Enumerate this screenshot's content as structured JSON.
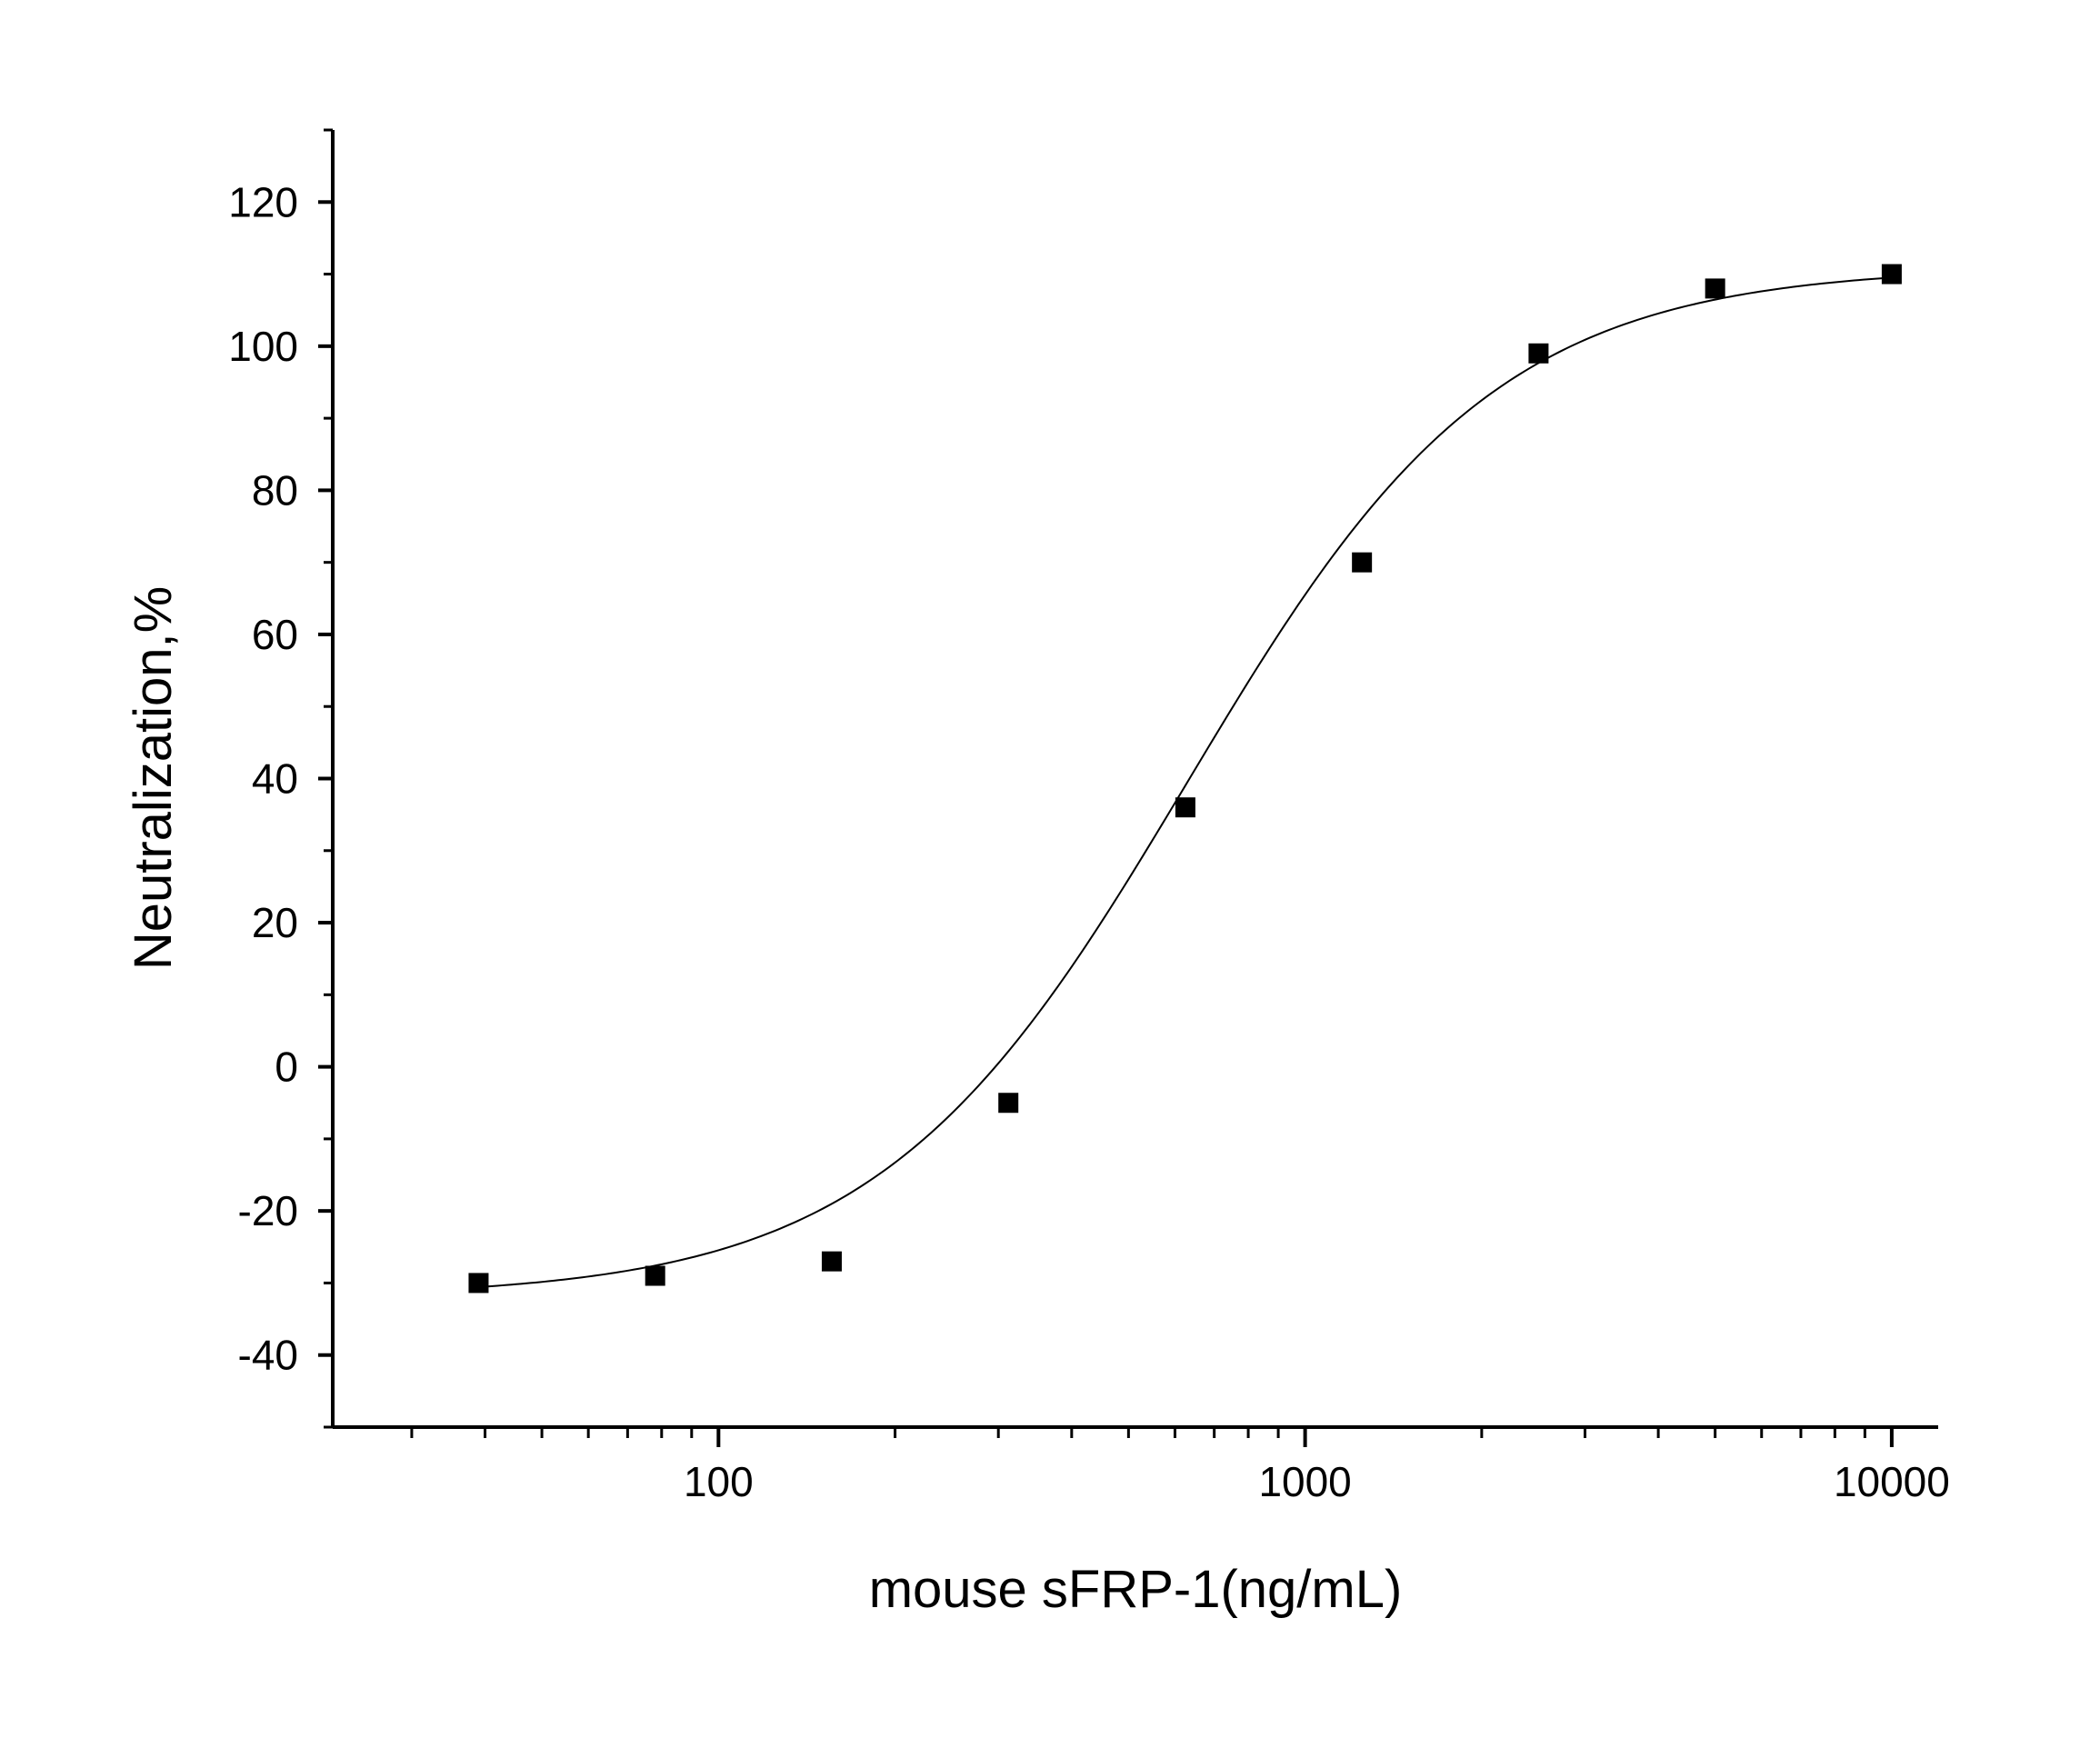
{
  "chart_data": {
    "type": "scatter",
    "title": "",
    "xlabel": "mouse sFRP-1(ng/mL)",
    "ylabel": "Neutralization,%",
    "x_scale": "log",
    "xlim": [
      22,
      12000
    ],
    "ylim": [
      -50,
      130
    ],
    "x_ticks": [
      {
        "value": 100,
        "label": "100"
      },
      {
        "value": 1000,
        "label": "1000"
      },
      {
        "value": 10000,
        "label": "10000"
      }
    ],
    "y_ticks": [
      {
        "value": -40,
        "label": "-40"
      },
      {
        "value": -20,
        "label": "-20"
      },
      {
        "value": 0,
        "label": "0"
      },
      {
        "value": 20,
        "label": "20"
      },
      {
        "value": 40,
        "label": "40"
      },
      {
        "value": 60,
        "label": "60"
      },
      {
        "value": 80,
        "label": "80"
      },
      {
        "value": 100,
        "label": "100"
      },
      {
        "value": 120,
        "label": "120"
      }
    ],
    "grid": false,
    "legend": "none",
    "marker_color": "#000000",
    "curve_color": "#000000",
    "series": [
      {
        "marker": "square",
        "points": [
          {
            "x": 39,
            "y": -30
          },
          {
            "x": 78,
            "y": -29
          },
          {
            "x": 156,
            "y": -27
          },
          {
            "x": 312,
            "y": -5
          },
          {
            "x": 625,
            "y": 36
          },
          {
            "x": 1250,
            "y": 70
          },
          {
            "x": 2500,
            "y": 99
          },
          {
            "x": 5000,
            "y": 108
          },
          {
            "x": 10000,
            "y": 110
          }
        ]
      }
    ],
    "fit_curve": {
      "model": "4PL",
      "bottom": -32,
      "top": 111,
      "ec50": 630,
      "hill": 1.65,
      "x_range": [
        39,
        10000
      ]
    }
  }
}
